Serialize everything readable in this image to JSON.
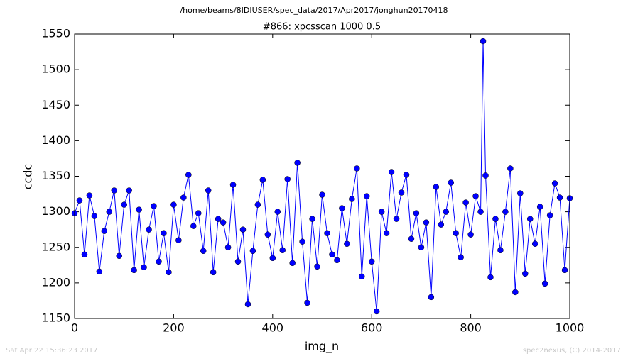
{
  "chart_data": {
    "type": "line",
    "suptitle": "/home/beams/8IDIUSER/spec_data/2017/Apr2017/jonghun20170418",
    "title": "#866: xpcsscan 1000 0.5",
    "xlabel": "img_n",
    "ylabel": "ccdc",
    "footer_left": "Sat Apr 22 15:36:23 2017",
    "footer_right": "spec2nexus, (C) 2014-2017",
    "x": [
      0,
      10,
      20,
      30,
      40,
      50,
      60,
      70,
      80,
      90,
      100,
      110,
      120,
      130,
      140,
      150,
      160,
      170,
      180,
      190,
      200,
      210,
      220,
      230,
      240,
      250,
      260,
      270,
      280,
      290,
      300,
      310,
      320,
      330,
      340,
      350,
      360,
      370,
      380,
      390,
      400,
      410,
      420,
      430,
      440,
      450,
      460,
      470,
      480,
      490,
      500,
      510,
      520,
      530,
      540,
      550,
      560,
      570,
      580,
      590,
      600,
      610,
      620,
      630,
      640,
      650,
      660,
      670,
      680,
      690,
      700,
      710,
      720,
      730,
      740,
      750,
      760,
      770,
      780,
      790,
      800,
      810,
      820,
      825,
      830,
      840,
      850,
      860,
      870,
      880,
      890,
      900,
      910,
      920,
      930,
      940,
      950,
      960,
      970,
      980,
      990,
      1000
    ],
    "series": [
      {
        "name": "ccdc",
        "color": "#0000ff",
        "values": [
          1298,
          1316,
          1240,
          1323,
          1294,
          1216,
          1273,
          1300,
          1330,
          1238,
          1310,
          1330,
          1218,
          1303,
          1222,
          1275,
          1308,
          1230,
          1270,
          1215,
          1310,
          1260,
          1320,
          1352,
          1280,
          1298,
          1245,
          1330,
          1215,
          1290,
          1285,
          1250,
          1338,
          1230,
          1275,
          1170,
          1245,
          1310,
          1345,
          1268,
          1235,
          1300,
          1246,
          1346,
          1228,
          1369,
          1258,
          1172,
          1290,
          1223,
          1324,
          1270,
          1240,
          1232,
          1305,
          1255,
          1318,
          1361,
          1209,
          1322,
          1230,
          1160,
          1300,
          1270,
          1356,
          1290,
          1327,
          1352,
          1262,
          1298,
          1250,
          1285,
          1180,
          1335,
          1282,
          1300,
          1341,
          1270,
          1236,
          1313,
          1268,
          1322,
          1300,
          1540,
          1351,
          1208,
          1290,
          1246,
          1300,
          1361,
          1187,
          1326,
          1213,
          1290,
          1255,
          1307,
          1199,
          1295,
          1340,
          1320,
          1218,
          1319
        ]
      }
    ],
    "xlim": [
      0,
      1000
    ],
    "xticks": [
      0,
      200,
      400,
      600,
      800,
      1000
    ],
    "ylim": [
      1150,
      1550
    ],
    "yticks": [
      1150,
      1200,
      1250,
      1300,
      1350,
      1400,
      1450,
      1500,
      1550
    ]
  }
}
